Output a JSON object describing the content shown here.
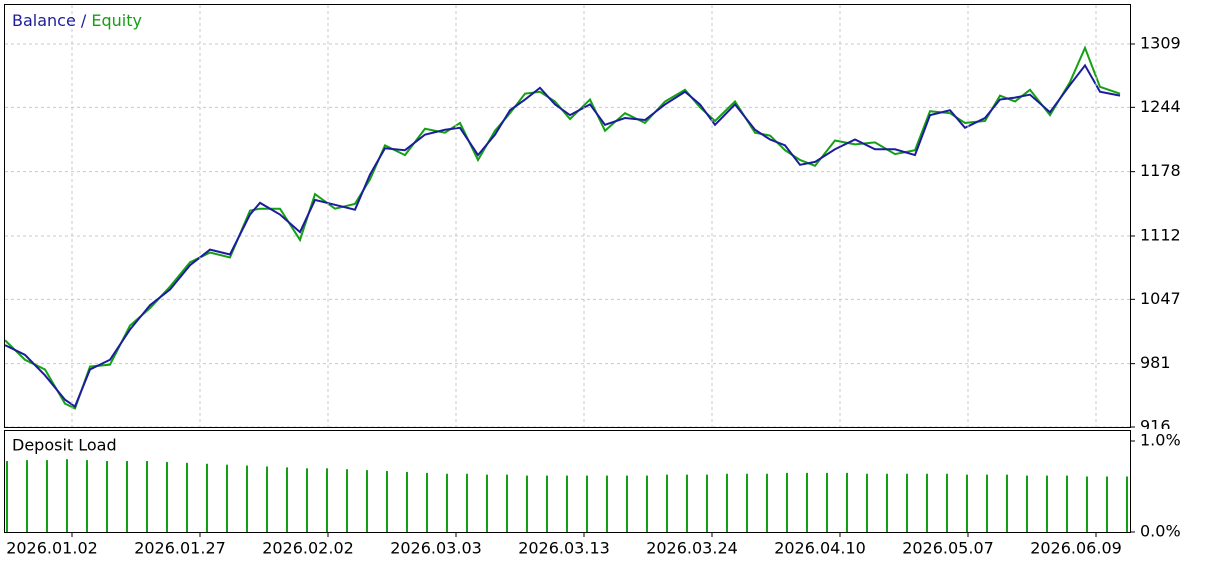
{
  "chart_data": [
    {
      "type": "line",
      "legend_separator": "/",
      "x": [
        0,
        20,
        40,
        60,
        70,
        85,
        105,
        125,
        145,
        165,
        185,
        205,
        225,
        245,
        255,
        275,
        295,
        310,
        330,
        350,
        365,
        380,
        400,
        420,
        440,
        455,
        473,
        490,
        505,
        520,
        535,
        550,
        565,
        585,
        600,
        620,
        640,
        660,
        680,
        695,
        710,
        730,
        750,
        765,
        780,
        795,
        810,
        830,
        850,
        870,
        890,
        910,
        925,
        945,
        960,
        980,
        995,
        1010,
        1025,
        1045,
        1065,
        1080,
        1095,
        1115
      ],
      "series": [
        {
          "name": "Balance",
          "color": "#1c1c9c",
          "values": [
            1000,
            990,
            969,
            944,
            937,
            975,
            985,
            1016,
            1041,
            1057,
            1082,
            1098,
            1093,
            1134,
            1146,
            1134,
            1116,
            1149,
            1144,
            1139,
            1175,
            1202,
            1200,
            1216,
            1221,
            1223,
            1195,
            1216,
            1241,
            1252,
            1264,
            1247,
            1236,
            1247,
            1226,
            1233,
            1231,
            1247,
            1260,
            1247,
            1226,
            1247,
            1221,
            1211,
            1205,
            1185,
            1188,
            1201,
            1211,
            1201,
            1201,
            1195,
            1236,
            1241,
            1223,
            1233,
            1252,
            1254,
            1257,
            1239,
            1267,
            1287,
            1260,
            1256
          ]
        },
        {
          "name": "Equity",
          "color": "#14a014",
          "values": [
            1005,
            985,
            975,
            940,
            935,
            978,
            980,
            1020,
            1038,
            1060,
            1085,
            1095,
            1090,
            1138,
            1140,
            1140,
            1108,
            1155,
            1140,
            1145,
            1170,
            1205,
            1195,
            1222,
            1218,
            1228,
            1190,
            1220,
            1238,
            1258,
            1260,
            1250,
            1232,
            1252,
            1220,
            1238,
            1228,
            1250,
            1262,
            1244,
            1230,
            1250,
            1218,
            1215,
            1200,
            1190,
            1184,
            1210,
            1206,
            1208,
            1196,
            1200,
            1240,
            1238,
            1228,
            1230,
            1256,
            1250,
            1262,
            1236,
            1270,
            1305,
            1265,
            1258
          ]
        }
      ],
      "xlim": [
        0,
        1125
      ],
      "ylim": [
        916,
        1349
      ],
      "yticks": [
        916,
        981,
        1047,
        1112,
        1178,
        1244,
        1309
      ],
      "grid": true
    },
    {
      "type": "bar",
      "title": "Deposit Load",
      "color": "#14a014",
      "x": [
        0,
        20,
        40,
        60,
        80,
        100,
        120,
        140,
        160,
        180,
        200,
        220,
        240,
        260,
        280,
        300,
        320,
        340,
        360,
        380,
        400,
        420,
        440,
        460,
        480,
        500,
        520,
        540,
        560,
        580,
        600,
        620,
        640,
        660,
        680,
        700,
        720,
        740,
        760,
        780,
        800,
        820,
        840,
        860,
        880,
        900,
        920,
        940,
        960,
        980,
        1000,
        1020,
        1040,
        1060,
        1080,
        1100,
        1120
      ],
      "values": [
        0.78,
        0.79,
        0.79,
        0.8,
        0.79,
        0.78,
        0.78,
        0.78,
        0.77,
        0.76,
        0.75,
        0.74,
        0.73,
        0.72,
        0.71,
        0.7,
        0.7,
        0.69,
        0.68,
        0.67,
        0.66,
        0.65,
        0.64,
        0.64,
        0.63,
        0.63,
        0.62,
        0.62,
        0.62,
        0.62,
        0.62,
        0.62,
        0.62,
        0.63,
        0.63,
        0.63,
        0.64,
        0.64,
        0.64,
        0.65,
        0.65,
        0.65,
        0.65,
        0.64,
        0.64,
        0.64,
        0.64,
        0.64,
        0.63,
        0.63,
        0.63,
        0.62,
        0.62,
        0.62,
        0.61,
        0.61,
        0.61
      ],
      "xlim": [
        0,
        1125
      ],
      "xticks": [
        {
          "value": 47,
          "label": "2026.01.02"
        },
        {
          "value": 175,
          "label": "2026.01.27"
        },
        {
          "value": 303,
          "label": "2026.02.02"
        },
        {
          "value": 431,
          "label": "2026.03.03"
        },
        {
          "value": 559,
          "label": "2026.03.13"
        },
        {
          "value": 687,
          "label": "2026.03.24"
        },
        {
          "value": 815,
          "label": "2026.04.10"
        },
        {
          "value": 943,
          "label": "2026.05.07"
        },
        {
          "value": 1071,
          "label": "2026.06.09"
        }
      ],
      "ylim": [
        0,
        1.11
      ],
      "yticks": [
        {
          "value": 0,
          "label": "0.0%"
        },
        {
          "value": 1,
          "label": "1.0%"
        }
      ]
    }
  ]
}
